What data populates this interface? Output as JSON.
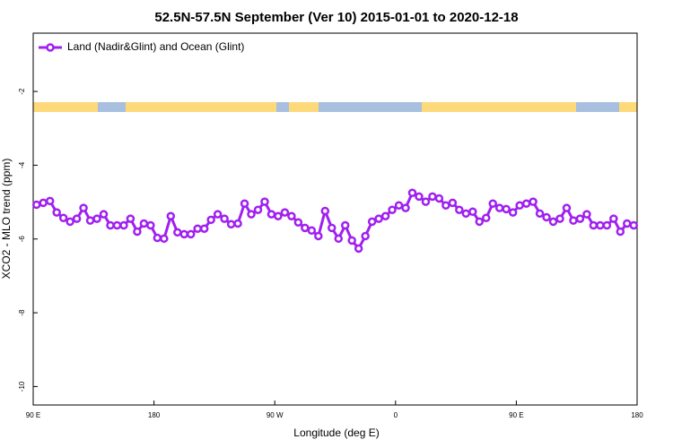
{
  "chart_data": {
    "type": "line",
    "title": "52.5N-57.5N September (Ver 10)   2015-01-01 to 2020-12-18",
    "x_label": "Longitude (deg E)",
    "y_label": "XCO2 - MLO trend (ppm)",
    "legend": "upper left",
    "x": [
      92.5,
      97.5,
      102.5,
      107.5,
      112.5,
      117.5,
      122.5,
      127.5,
      132.5,
      137.5,
      142.5,
      147.5,
      152.5,
      157.5,
      162.5,
      167.5,
      172.5,
      177.5,
      182.5,
      187.5,
      192.5,
      197.5,
      202.5,
      207.5,
      212.5,
      217.5,
      222.5,
      227.5,
      232.5,
      237.5,
      242.5,
      247.5,
      252.5,
      257.5,
      262.5,
      267.5,
      272.5,
      277.5,
      282.5,
      287.5,
      292.5,
      297.5,
      302.5,
      307.5,
      312.5,
      317.5,
      322.5,
      327.5,
      332.5,
      337.5,
      342.5,
      347.5,
      352.5,
      357.5,
      362.5,
      367.5,
      372.5,
      377.5,
      382.5,
      387.5,
      392.5,
      397.5,
      402.5,
      407.5,
      412.5,
      417.5,
      422.5,
      427.5,
      432.5,
      437.5,
      442.5,
      447.5,
      452.5,
      457.5,
      462.5,
      467.5,
      472.5,
      477.5,
      482.5,
      487.5,
      492.5,
      497.5,
      502.5,
      507.5,
      512.5,
      517.5,
      522.5,
      527.5,
      532.5,
      537.5
    ],
    "series": [
      {
        "name": "Land (Nadir&Glint) and Ocean (Glint)",
        "color": "#a020f0",
        "values": [
          -5.07,
          -5.02,
          -4.97,
          -5.28,
          -5.43,
          -5.53,
          -5.45,
          -5.16,
          -5.5,
          -5.45,
          -5.33,
          -5.63,
          -5.63,
          -5.63,
          -5.45,
          -5.8,
          -5.58,
          -5.63,
          -5.97,
          -5.99,
          -5.38,
          -5.82,
          -5.87,
          -5.87,
          -5.72,
          -5.72,
          -5.48,
          -5.33,
          -5.45,
          -5.6,
          -5.58,
          -5.04,
          -5.33,
          -5.21,
          -4.99,
          -5.33,
          -5.38,
          -5.28,
          -5.38,
          -5.55,
          -5.7,
          -5.77,
          -5.92,
          -5.24,
          -5.7,
          -5.99,
          -5.63,
          -6.04,
          -6.26,
          -5.92,
          -5.53,
          -5.45,
          -5.38,
          -5.21,
          -5.09,
          -5.16,
          -4.75,
          -4.85,
          -4.99,
          -4.85,
          -4.9,
          -5.09,
          -5.02,
          -5.21,
          -5.31,
          -5.26,
          -5.53,
          -5.43,
          -5.04,
          -5.16,
          -5.19,
          -5.28,
          -5.09,
          -5.04,
          -4.99,
          -5.31,
          -5.41,
          -5.53,
          -5.45,
          -5.16,
          -5.5,
          -5.45,
          -5.33,
          -5.63,
          -5.63,
          -5.63,
          -5.45,
          -5.8,
          -5.58,
          -5.63
        ]
      }
    ],
    "xlim": [
      90,
      540
    ],
    "xticks": [
      {
        "value": 90,
        "label": "90 E"
      },
      {
        "value": 180,
        "label": "180"
      },
      {
        "value": 270,
        "label": "90 W"
      },
      {
        "value": 360,
        "label": "0"
      },
      {
        "value": 450,
        "label": "90 E"
      },
      {
        "value": 540,
        "label": "180"
      }
    ],
    "ylim": [
      -10.5,
      -0.42
    ],
    "yticks": [
      -10,
      -8,
      -6,
      -4,
      -2
    ]
  }
}
